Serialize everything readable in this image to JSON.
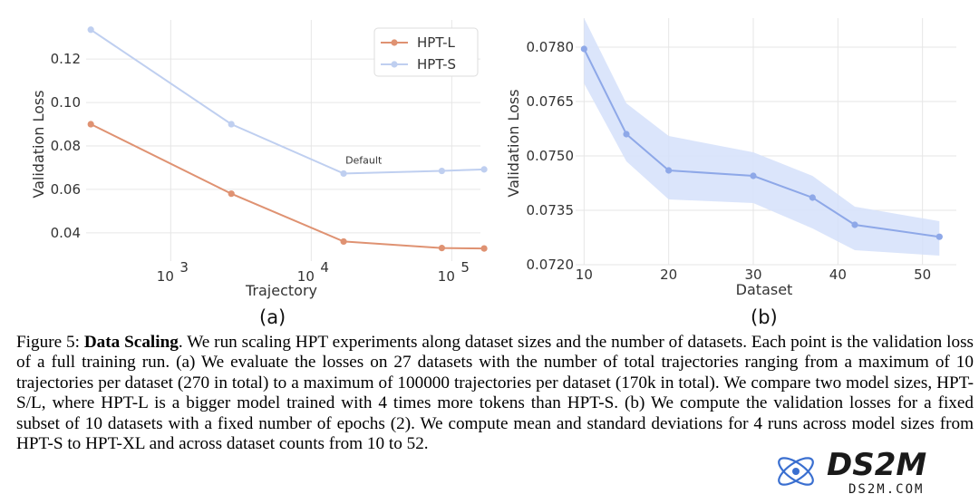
{
  "chart_data": [
    {
      "type": "line",
      "panel_label": "(a)",
      "xlabel": "Trajectory",
      "ylabel": "Validation Loss",
      "x_scale": "log",
      "xlim": [
        250,
        160000
      ],
      "ylim": [
        0.027,
        0.138
      ],
      "x_ticks": [
        1000,
        10000,
        100000
      ],
      "x_tick_labels": [
        "10",
        "10",
        "10"
      ],
      "x_tick_exponents": [
        "3",
        "4",
        "5"
      ],
      "y_ticks": [
        0.04,
        0.06,
        0.08,
        0.1,
        0.12
      ],
      "y_tick_labels": [
        "0.04",
        "0.06",
        "0.08",
        "0.10",
        "0.12"
      ],
      "grid": true,
      "legend_position": "top-right",
      "series": [
        {
          "name": "HPT-L",
          "color": "#df9272",
          "x": [
            270,
            2700,
            17000,
            85000,
            170000
          ],
          "y": [
            0.09,
            0.058,
            0.036,
            0.033,
            0.0328
          ]
        },
        {
          "name": "HPT-S",
          "color": "#bfcff0",
          "x": [
            270,
            2700,
            17000,
            85000,
            170000
          ],
          "y": [
            0.1335,
            0.09,
            0.0673,
            0.0685,
            0.0692
          ]
        }
      ],
      "annotations": [
        {
          "text": "Default",
          "x": 17000,
          "y": 0.0673
        }
      ]
    },
    {
      "type": "line",
      "panel_label": "(b)",
      "xlabel": "Dataset",
      "ylabel": "Validation Loss",
      "xlim": [
        9,
        54
      ],
      "ylim": [
        0.072,
        0.0788
      ],
      "x_ticks": [
        10,
        20,
        30,
        40,
        50
      ],
      "x_tick_labels": [
        "10",
        "20",
        "30",
        "40",
        "50"
      ],
      "y_ticks": [
        0.072,
        0.0735,
        0.075,
        0.0765,
        0.078
      ],
      "y_tick_labels": [
        "0.0720",
        "0.0735",
        "0.0750",
        "0.0765",
        "0.0780"
      ],
      "grid": true,
      "series": [
        {
          "color": "#8ea8e8",
          "band_color": "#d5e0fa",
          "x": [
            10,
            15,
            20,
            30,
            37,
            42,
            52
          ],
          "y": [
            0.07795,
            0.0756,
            0.0746,
            0.07445,
            0.07385,
            0.0731,
            0.07277
          ],
          "lower": [
            0.077,
            0.07485,
            0.0738,
            0.0737,
            0.073,
            0.0724,
            0.07225
          ],
          "upper": [
            0.0788,
            0.07645,
            0.07555,
            0.0751,
            0.07445,
            0.0736,
            0.0732
          ]
        }
      ]
    }
  ],
  "caption": {
    "label": "Figure 5:",
    "title": "Data Scaling",
    "text": ". We run scaling HPT experiments along dataset sizes and the number of datasets. Each point is the validation loss of a full training run. (a) We evaluate the losses on 27 datasets with the number of total trajectories ranging from a maximum of 10 trajectories per dataset (270 in total) to a maximum of 100000 trajectories per dataset (170k in total). We compare two model sizes, HPT-S/L, where HPT-L is a bigger model trained with 4 times more tokens than HPT-S. (b) We compute the validation losses for a fixed subset of 10 datasets with a fixed number of epochs (2). We compute mean and standard deviations for 4 runs across model sizes from HPT-S to HPT-XL and across dataset counts from 10 to 52."
  },
  "watermark": {
    "text": "DS2M",
    "sub": "DS2M.COM"
  }
}
